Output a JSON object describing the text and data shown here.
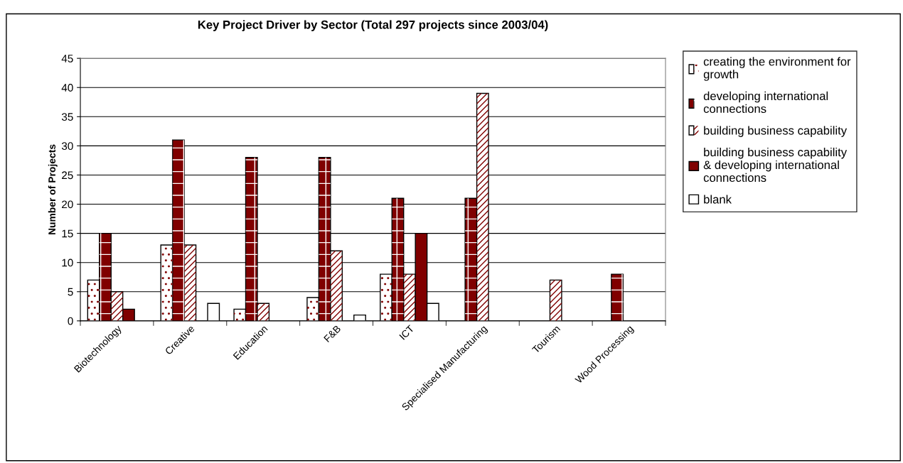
{
  "chart_data": {
    "type": "bar",
    "title": "Key Project Driver by Sector (Total 297 projects since 2003/04)",
    "ylabel": "Number of Projects",
    "categories": [
      "Biotechnology",
      "Creative",
      "Education",
      "F&B",
      "ICT",
      "Specialised Manufacturing",
      "Tourism",
      "Wood Processing"
    ],
    "series": [
      {
        "name": "creating the environment for\ngrowth",
        "color": "#ffffff",
        "values": [
          7,
          13,
          2,
          4,
          8,
          0,
          0,
          0
        ]
      },
      {
        "name": "developing international\nconnections",
        "color": "#800000",
        "values": [
          15,
          31,
          28,
          28,
          21,
          21,
          0,
          8
        ]
      },
      {
        "name": "building business capability",
        "color": "#ffffff",
        "values": [
          5,
          13,
          3,
          12,
          8,
          39,
          7,
          0
        ]
      },
      {
        "name": "building business capability\n& developing international\nconnections",
        "color": "#800000",
        "values": [
          2,
          0,
          0,
          0,
          15,
          0,
          0,
          0
        ]
      },
      {
        "name": "blank",
        "color": "#ffffff",
        "values": [
          0,
          3,
          0,
          1,
          3,
          0,
          0,
          0
        ]
      }
    ],
    "ylim": [
      0,
      45
    ],
    "yticks": [
      0,
      5,
      10,
      15,
      20,
      25,
      30,
      35,
      40,
      45
    ],
    "grid": "y",
    "legend": "right"
  }
}
